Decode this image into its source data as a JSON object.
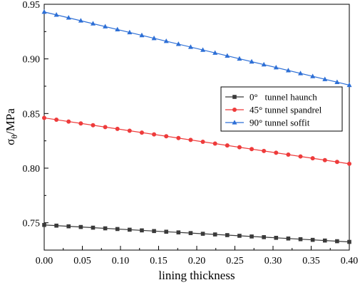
{
  "chart_data": {
    "type": "line",
    "title": "",
    "xlabel": "lining thickness",
    "ylabel": "σ",
    "ylabel_sub": "θ",
    "ylabel_unit": "/MPa",
    "xlim": [
      0.0,
      0.4
    ],
    "ylim": [
      0.725,
      0.95
    ],
    "x_ticks": [
      0.0,
      0.05,
      0.1,
      0.15,
      0.2,
      0.25,
      0.3,
      0.35,
      0.4
    ],
    "x_tick_labels": [
      "0.00",
      "0.05",
      "0.10",
      "0.15",
      "0.20",
      "0.25",
      "0.30",
      "0.35",
      "0.40"
    ],
    "y_ticks": [
      0.75,
      0.8,
      0.85,
      0.9,
      0.95
    ],
    "y_tick_labels": [
      "0.75",
      "0.80",
      "0.85",
      "0.90",
      "0.95"
    ],
    "grid": false,
    "legend_position": "right-middle",
    "series": [
      {
        "name": "0°   tunnel haunch",
        "color": "#3a3a3a",
        "marker": "square",
        "x_start": 0.0,
        "x_end": 0.4,
        "count": 26,
        "y_start": 0.748,
        "y_end": 0.7325
      },
      {
        "name": "45° tunnel spandrel",
        "color": "#ee3b3b",
        "marker": "circle",
        "x_start": 0.0,
        "x_end": 0.4,
        "count": 26,
        "y_start": 0.846,
        "y_end": 0.804
      },
      {
        "name": "90° tunnel soffit",
        "color": "#2d6fd6",
        "marker": "triangle",
        "x_start": 0.0,
        "x_end": 0.4,
        "count": 26,
        "y_start": 0.943,
        "y_end": 0.876
      }
    ]
  }
}
